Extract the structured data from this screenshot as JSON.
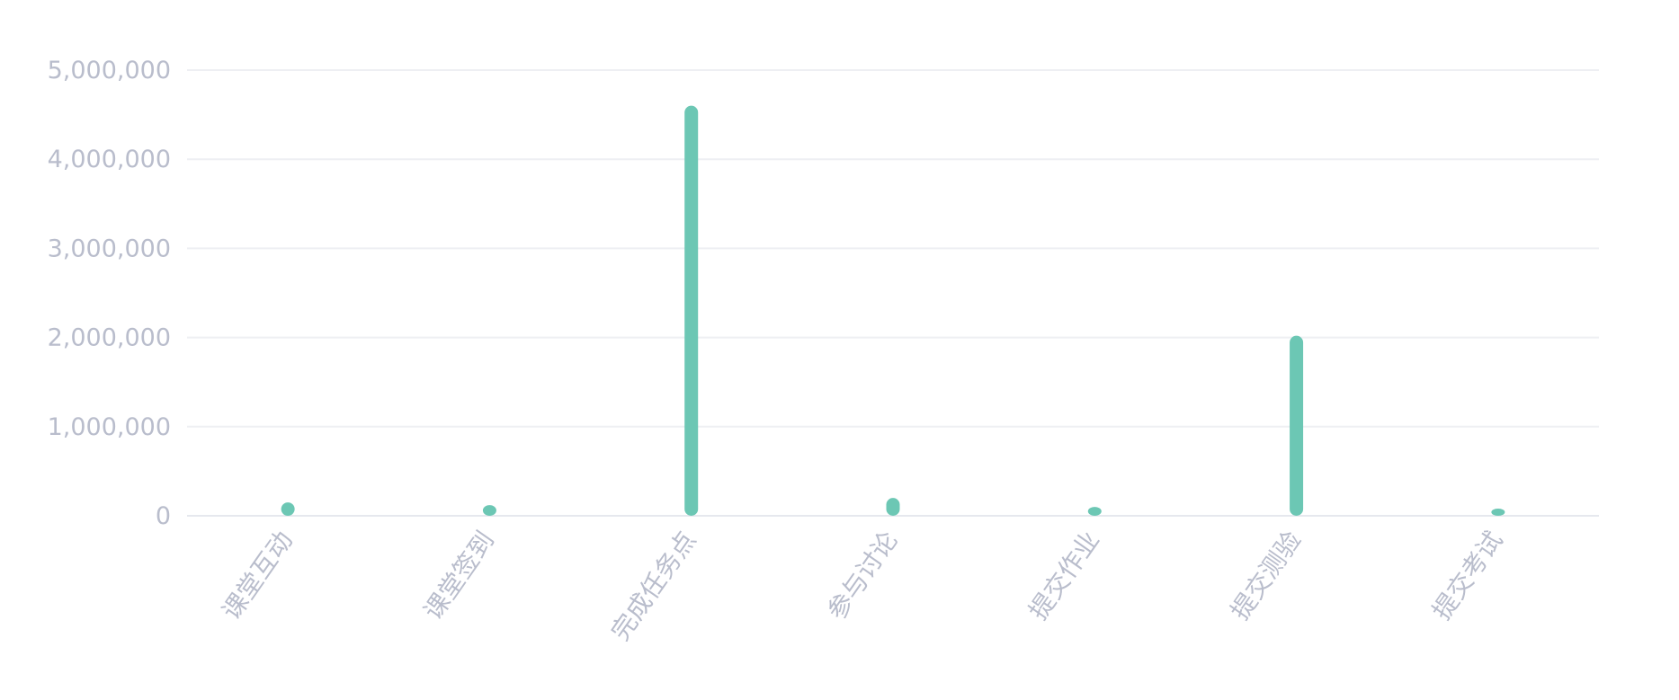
{
  "chart_data": {
    "type": "bar",
    "title": "",
    "xlabel": "",
    "ylabel": "",
    "categories": [
      "课堂互动",
      "课堂签到",
      "完成任务点",
      "参与讨论",
      "提交作业",
      "提交测验",
      "提交考试"
    ],
    "values": [
      150000,
      120000,
      4600000,
      200000,
      100000,
      2020000,
      60000
    ],
    "ylim": [
      0,
      5000000
    ],
    "y_ticks": [
      0,
      1000000,
      2000000,
      3000000,
      4000000,
      5000000
    ],
    "y_tick_labels": [
      "0",
      "1,000,000",
      "2,000,000",
      "3,000,000",
      "4,000,000",
      "5,000,000"
    ],
    "grid": true,
    "bar_color": "#6cc7b4",
    "grid_color": "#eeeff3",
    "label_color": "#b9bdcc"
  }
}
